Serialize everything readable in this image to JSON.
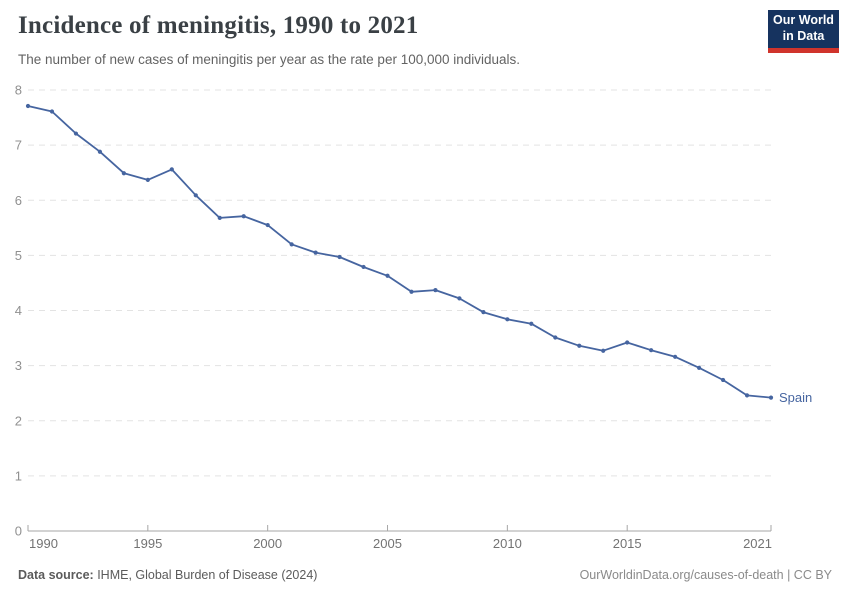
{
  "header": {
    "title": "Incidence of meningitis, 1990 to 2021",
    "subtitle": "The number of new cases of meningitis per year as the rate per 100,000 individuals.",
    "logo": {
      "line1": "Our World",
      "line2": "in Data"
    }
  },
  "chart_data": {
    "type": "line",
    "title": "Incidence of meningitis, 1990 to 2021",
    "xlabel": "",
    "ylabel": "",
    "ylim": [
      0,
      8
    ],
    "yticks": [
      0,
      1,
      2,
      3,
      4,
      5,
      6,
      7,
      8
    ],
    "xticks": [
      1990,
      1995,
      2000,
      2005,
      2010,
      2015,
      2021
    ],
    "grid": "horizontal-dashed",
    "legend_position": "end-of-line-label",
    "series": [
      {
        "name": "Spain",
        "color": "#4665a0",
        "x": [
          1990,
          1991,
          1992,
          1993,
          1994,
          1995,
          1996,
          1997,
          1998,
          1999,
          2000,
          2001,
          2002,
          2003,
          2004,
          2005,
          2006,
          2007,
          2008,
          2009,
          2010,
          2011,
          2012,
          2013,
          2014,
          2015,
          2016,
          2017,
          2018,
          2019,
          2020,
          2021
        ],
        "values": [
          7.71,
          7.61,
          7.21,
          6.88,
          6.49,
          6.37,
          6.56,
          6.09,
          5.68,
          5.71,
          5.55,
          5.2,
          5.05,
          4.97,
          4.79,
          4.63,
          4.34,
          4.37,
          4.22,
          3.97,
          3.84,
          3.76,
          3.51,
          3.36,
          3.27,
          3.42,
          3.28,
          3.16,
          2.96,
          2.74,
          2.46,
          2.42
        ]
      }
    ]
  },
  "footer": {
    "source_label": "Data source:",
    "source_text": " IHME, Global Burden of Disease (2024)",
    "credit": "OurWorldinData.org/causes-of-death | CC BY"
  },
  "colors": {
    "line": "#4665a0",
    "grid": "#e3e3e3",
    "axis": "#a6a6a6",
    "y_tick_label": "#909090",
    "x_tick_label": "#737373",
    "title": "#3a4045",
    "subtitle": "#636363",
    "logo_bg": "#16335f",
    "logo_red": "#d0342c"
  }
}
